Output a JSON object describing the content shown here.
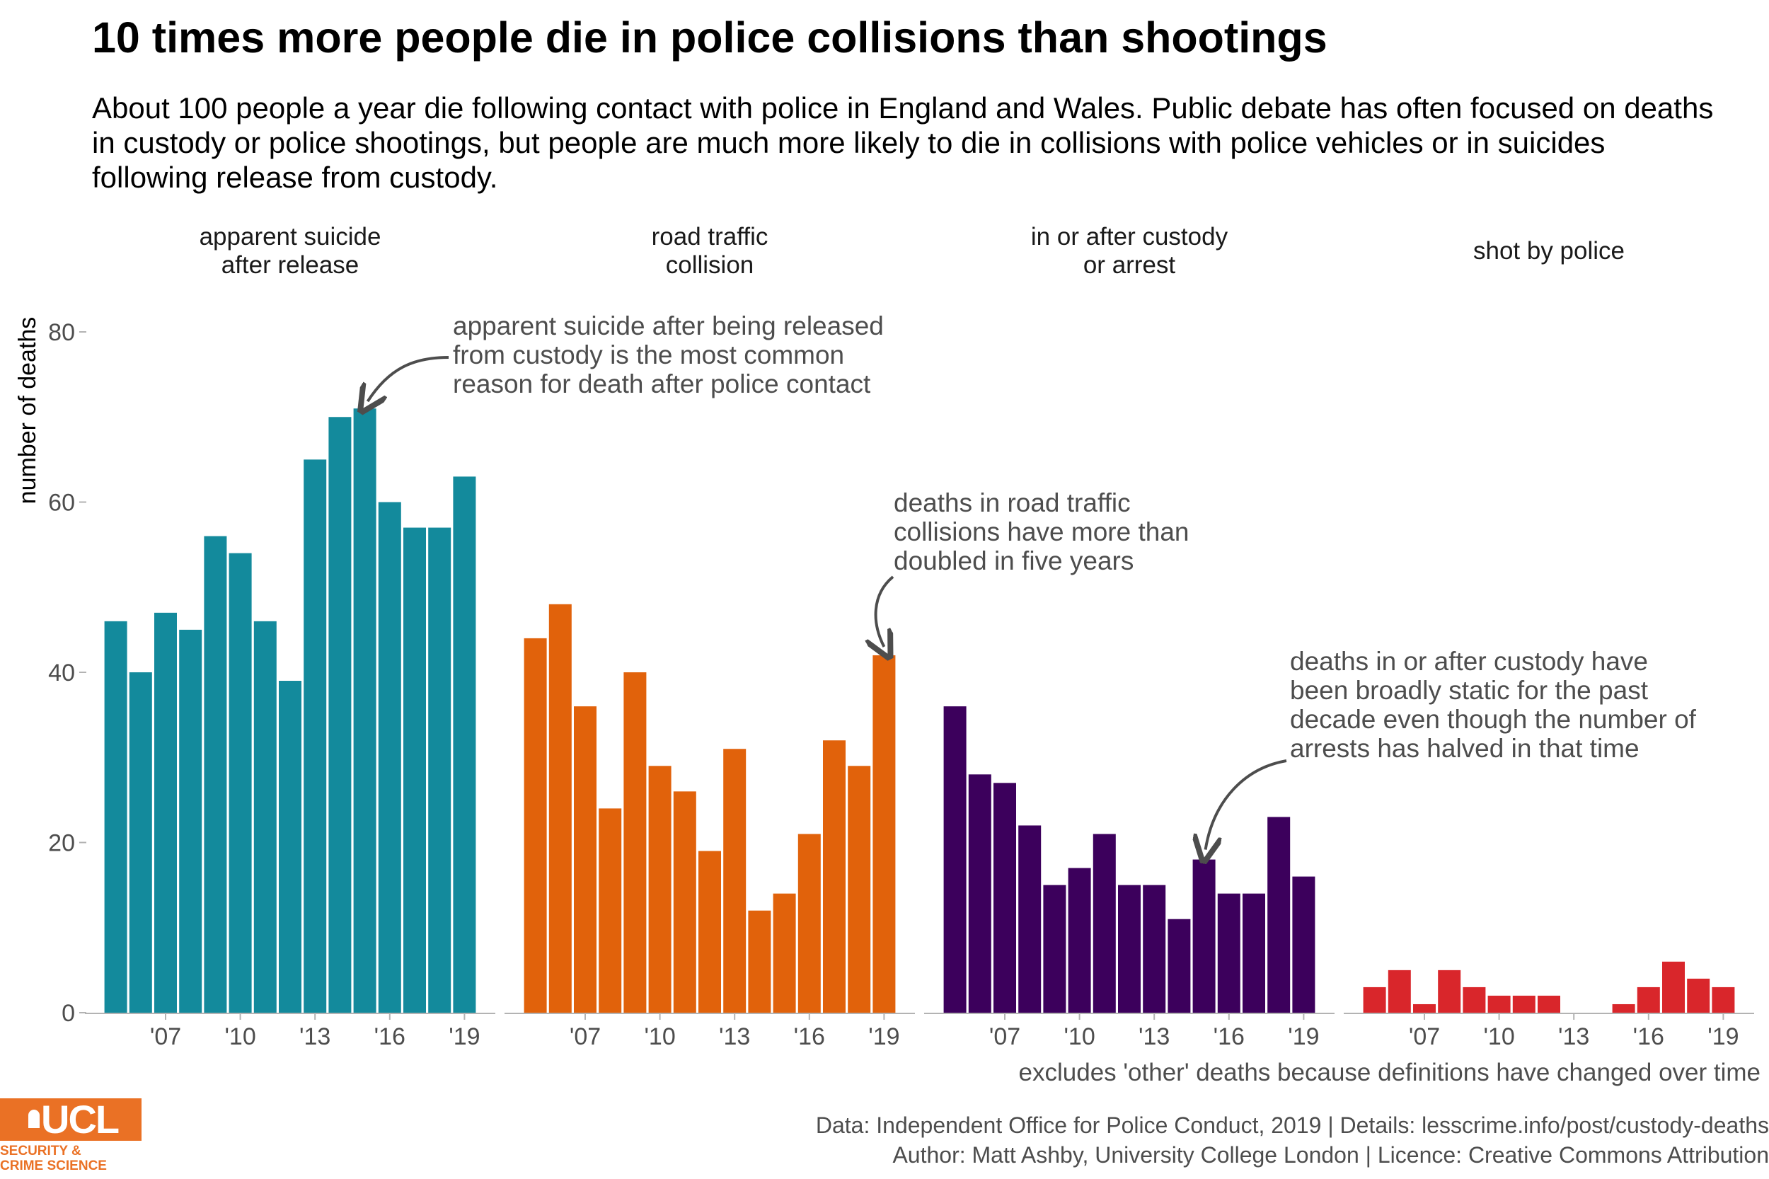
{
  "title": "10 times more people die in police collisions than shootings",
  "subtitle": "About 100 people a year die following contact with police in England and Wales. Public debate has often focused on deaths in custody or police shootings, but people are much more likely to die in collisions with police vehicles or in suicides following release from custody.",
  "annotations": {
    "suicide": [
      "apparent suicide after being released",
      "from custody is the most common",
      "reason for death after police contact"
    ],
    "traffic": [
      "deaths in road traffic",
      "collisions have more than",
      "doubled in five years"
    ],
    "custody": [
      "deaths in or after custody have",
      "been broadly static for the past",
      "decade even though the number of",
      "arrests has halved in that time"
    ]
  },
  "footnote": "excludes 'other' deaths because definitions have changed over time",
  "caption": [
    "Data: Independent Office for Police Conduct, 2019 |  Details: lesscrime.info/post/custody-deaths",
    "Author: Matt Ashby, University College London |  Licence: Creative Commons Attribution"
  ],
  "logo": {
    "word": "UCL",
    "text": "SECURITY &\nCRIME SCIENCE",
    "color": "#ea7125"
  },
  "chart_data": {
    "type": "bar",
    "ylabel": "number of deaths",
    "ylim": [
      0,
      85
    ],
    "yticks": [
      0,
      20,
      40,
      60,
      80
    ],
    "x": [
      2005,
      2006,
      2007,
      2008,
      2009,
      2010,
      2011,
      2012,
      2013,
      2014,
      2015,
      2016,
      2017,
      2018,
      2019
    ],
    "xticks": [
      2007,
      2010,
      2013,
      2016,
      2019
    ],
    "xtick_labels": [
      "'07",
      "'10",
      "'13",
      "'16",
      "'19"
    ],
    "panels": [
      {
        "label": [
          "apparent suicide",
          "after release"
        ],
        "color": "#138a9c",
        "values": [
          46,
          40,
          47,
          45,
          56,
          54,
          46,
          39,
          65,
          70,
          71,
          60,
          57,
          57,
          63
        ]
      },
      {
        "label": [
          "road traffic",
          "collision"
        ],
        "color": "#e1620b",
        "values": [
          44,
          48,
          36,
          24,
          40,
          29,
          26,
          19,
          31,
          12,
          14,
          21,
          32,
          29,
          42
        ]
      },
      {
        "label": [
          "in or after custody",
          "or arrest"
        ],
        "color": "#3c005c",
        "values": [
          36,
          28,
          27,
          22,
          15,
          17,
          21,
          15,
          15,
          11,
          18,
          14,
          14,
          23,
          16
        ]
      },
      {
        "label": [
          "shot by police"
        ],
        "color": "#d9262b",
        "values": [
          3,
          5,
          1,
          5,
          3,
          2,
          2,
          2,
          0,
          0,
          1,
          3,
          6,
          4,
          3
        ]
      }
    ]
  }
}
